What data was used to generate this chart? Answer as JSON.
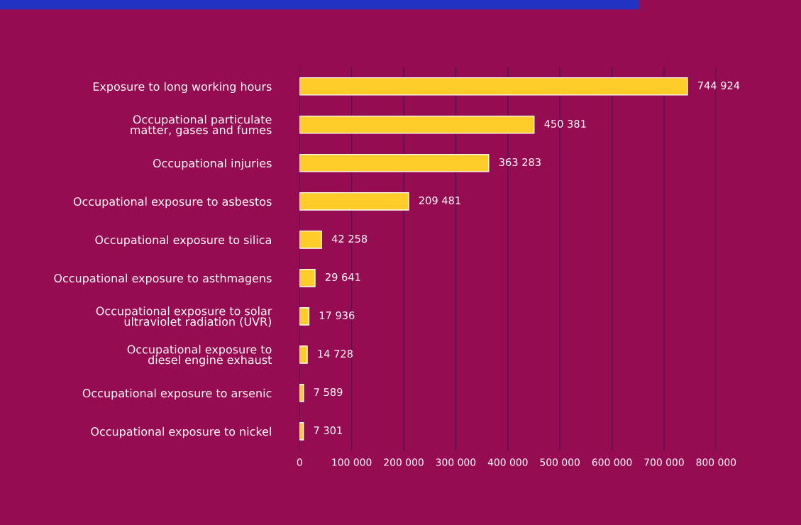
{
  "chart_data": {
    "type": "bar",
    "orientation": "horizontal",
    "categories": [
      "Exposure to long working hours",
      "Occupational particulate\nmatter, gases and fumes",
      "Occupational injuries",
      "Occupational exposure to asbestos",
      "Occupational exposure to silica",
      "Occupational exposure to asthmagens",
      "Occupational exposure to solar\nultraviolet radiation (UVR)",
      "Occupational exposure to\ndiesel engine exhaust",
      "Occupational exposure to arsenic",
      "Occupational exposure to nickel"
    ],
    "values": [
      744924,
      450381,
      363283,
      209481,
      42258,
      29641,
      17936,
      14728,
      7589,
      7301
    ],
    "value_labels": [
      "744 924",
      "450 381",
      "363 283",
      "209 481",
      "42 258",
      "29 641",
      "17 936",
      "14 728",
      "7 589",
      "7 301"
    ],
    "color": "#ffcd2a",
    "xlim": [
      0,
      800000
    ],
    "xticks": [
      0,
      {
        "value": 100000,
        "label": "100 000"
      },
      {
        "value": 200000,
        "label": "200 000"
      },
      {
        "value": 300000,
        "label": "300 000"
      },
      {
        "value": 400000,
        "label": "400 000"
      },
      {
        "value": 500000,
        "label": "500 000"
      },
      {
        "value": 600000,
        "label": "600 000"
      },
      {
        "value": 700000,
        "label": "700 000"
      },
      {
        "value": 800000,
        "label": "800 000"
      }
    ],
    "grid": "x",
    "legend": false
  }
}
